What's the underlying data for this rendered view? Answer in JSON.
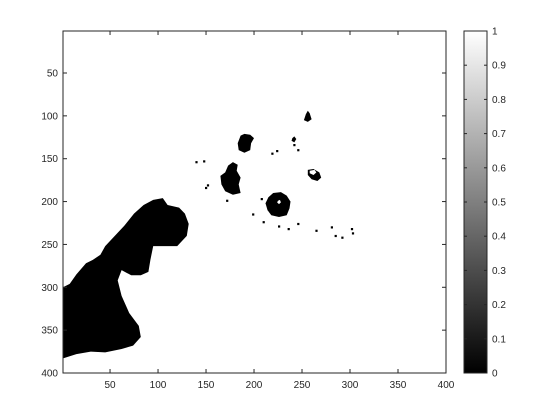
{
  "chart_data": {
    "type": "heatmap",
    "title": "",
    "xlabel": "",
    "ylabel": "",
    "xlim": [
      1,
      400
    ],
    "ylim": [
      1,
      400
    ],
    "y_reversed": true,
    "x_ticks": [
      50,
      100,
      150,
      200,
      250,
      300,
      350,
      400
    ],
    "x_tick_labels": [
      "50",
      "100",
      "150",
      "200",
      "250",
      "300",
      "350",
      "400"
    ],
    "y_ticks": [
      50,
      100,
      150,
      200,
      250,
      300,
      350,
      400
    ],
    "y_tick_labels": [
      "50",
      "100",
      "150",
      "200",
      "250",
      "300",
      "350",
      "400"
    ],
    "colormap": "gray",
    "clim": [
      0,
      1
    ],
    "colorbar_ticks": [
      0,
      0.1,
      0.2,
      0.3,
      0.4,
      0.5,
      0.6,
      0.7,
      0.8,
      0.9,
      1
    ],
    "colorbar_tick_labels": [
      "0",
      "0.1",
      "0.2",
      "0.3",
      "0.4",
      "0.5",
      "0.6",
      "0.7",
      "0.8",
      "0.9",
      "1"
    ],
    "background_value": 1,
    "regions_value_0": [
      {
        "name": "lower-left-mass",
        "points": [
          [
            1,
            300
          ],
          [
            8,
            296
          ],
          [
            15,
            285
          ],
          [
            25,
            272
          ],
          [
            32,
            268
          ],
          [
            40,
            262
          ],
          [
            45,
            252
          ],
          [
            55,
            240
          ],
          [
            65,
            228
          ],
          [
            75,
            214
          ],
          [
            85,
            204
          ],
          [
            95,
            198
          ],
          [
            105,
            196
          ],
          [
            110,
            204
          ],
          [
            122,
            207
          ],
          [
            128,
            214
          ],
          [
            132,
            226
          ],
          [
            130,
            240
          ],
          [
            120,
            252
          ],
          [
            95,
            252
          ],
          [
            92,
            268
          ],
          [
            90,
            282
          ],
          [
            82,
            286
          ],
          [
            72,
            286
          ],
          [
            62,
            280
          ],
          [
            58,
            292
          ],
          [
            62,
            310
          ],
          [
            70,
            330
          ],
          [
            80,
            345
          ],
          [
            82,
            358
          ],
          [
            74,
            368
          ],
          [
            62,
            372
          ],
          [
            45,
            376
          ],
          [
            30,
            375
          ],
          [
            15,
            378
          ],
          [
            1,
            383
          ]
        ]
      },
      {
        "name": "blob-a",
        "points": [
          [
            186,
            123
          ],
          [
            190,
            121
          ],
          [
            196,
            122
          ],
          [
            200,
            126
          ],
          [
            197,
            132
          ],
          [
            196,
            140
          ],
          [
            190,
            143
          ],
          [
            184,
            140
          ],
          [
            183,
            132
          ]
        ]
      },
      {
        "name": "blob-b",
        "points": [
          [
            173,
            158
          ],
          [
            178,
            154
          ],
          [
            183,
            157
          ],
          [
            182,
            164
          ],
          [
            186,
            172
          ],
          [
            184,
            180
          ],
          [
            186,
            190
          ],
          [
            178,
            192
          ],
          [
            170,
            188
          ],
          [
            166,
            180
          ],
          [
            165,
            170
          ],
          [
            170,
            166
          ]
        ]
      },
      {
        "name": "blob-c",
        "points": [
          [
            215,
            195
          ],
          [
            220,
            190
          ],
          [
            228,
            189
          ],
          [
            234,
            193
          ],
          [
            238,
            200
          ],
          [
            237,
            208
          ],
          [
            234,
            216
          ],
          [
            226,
            218
          ],
          [
            218,
            216
          ],
          [
            214,
            210
          ],
          [
            212,
            202
          ]
        ]
      },
      {
        "name": "blob-d",
        "points": [
          [
            256,
            163
          ],
          [
            262,
            162
          ],
          [
            268,
            166
          ],
          [
            270,
            172
          ],
          [
            266,
            176
          ],
          [
            260,
            174
          ],
          [
            256,
            169
          ]
        ]
      },
      {
        "name": "blob-e",
        "points": [
          [
            254,
            98
          ],
          [
            256,
            94
          ],
          [
            258,
            97
          ],
          [
            260,
            104
          ],
          [
            256,
            107
          ],
          [
            252,
            105
          ]
        ]
      },
      {
        "name": "blob-f",
        "points": [
          [
            240,
            126
          ],
          [
            242,
            124
          ],
          [
            244,
            127
          ],
          [
            242,
            131
          ],
          [
            239,
            129
          ]
        ]
      }
    ],
    "regions_value_1": [
      {
        "name": "hole-c",
        "points": [
          [
            225,
            199
          ],
          [
            227,
            198
          ],
          [
            228,
            201
          ],
          [
            226,
            203
          ],
          [
            224,
            201
          ]
        ]
      },
      {
        "name": "hole-d",
        "points": [
          [
            258,
            164
          ],
          [
            263,
            163
          ],
          [
            265,
            166
          ],
          [
            262,
            169
          ],
          [
            258,
            167
          ]
        ]
      }
    ],
    "specks_value_0": [
      [
        148,
        153
      ],
      [
        150,
        184
      ],
      [
        152,
        181
      ],
      [
        140,
        154
      ],
      [
        172,
        199
      ],
      [
        208,
        197
      ],
      [
        199,
        215
      ],
      [
        210,
        224
      ],
      [
        226,
        229
      ],
      [
        236,
        232
      ],
      [
        246,
        226
      ],
      [
        265,
        234
      ],
      [
        281,
        230
      ],
      [
        285,
        240
      ],
      [
        292,
        242
      ],
      [
        302,
        232
      ],
      [
        303,
        237
      ],
      [
        242,
        134
      ],
      [
        246,
        140
      ],
      [
        224,
        141
      ],
      [
        219,
        144
      ]
    ]
  }
}
